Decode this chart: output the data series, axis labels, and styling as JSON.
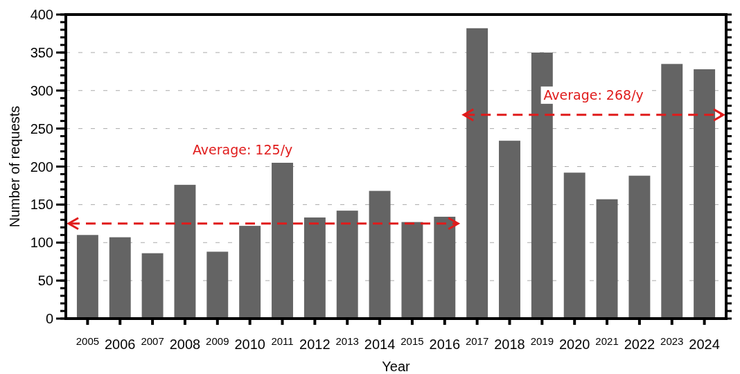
{
  "chart_data": {
    "type": "bar",
    "xlabel": "Year",
    "ylabel": "Number of requests",
    "categories": [
      "2005",
      "2006",
      "2007",
      "2008",
      "2009",
      "2010",
      "2011",
      "2012",
      "2013",
      "2014",
      "2015",
      "2016",
      "2017",
      "2018",
      "2019",
      "2020",
      "2021",
      "2022",
      "2023",
      "2024"
    ],
    "series": [
      {
        "color": "#646464",
        "values": [
          110,
          107,
          86,
          176,
          88,
          122,
          205,
          133,
          142,
          168,
          127,
          134,
          382,
          234,
          350,
          192,
          157,
          188,
          335,
          328
        ]
      }
    ],
    "ref_lines": [
      {
        "axis": "y",
        "value": 125,
        "label": "Average: 125/y",
        "color": "#e01b1b",
        "line_style": "dashed"
      },
      {
        "axis": "y",
        "value": 268,
        "label": "Average: 268/y",
        "color": "#e01b1b",
        "line_style": "dashed"
      }
    ],
    "ylim": [
      0,
      400
    ],
    "yticks": [
      0,
      50,
      100,
      150,
      200,
      250,
      300,
      350,
      400
    ],
    "grid": "y"
  }
}
